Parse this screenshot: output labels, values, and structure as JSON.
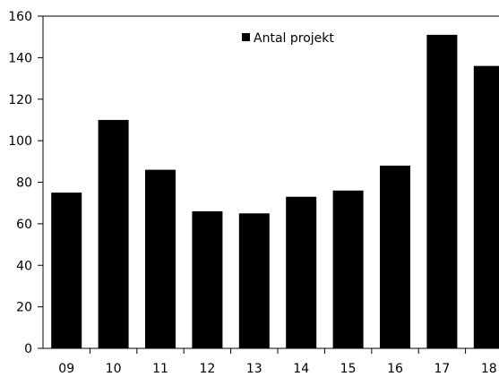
{
  "chart_data": {
    "type": "bar",
    "title": "",
    "xlabel": "",
    "ylabel": "",
    "categories": [
      "09",
      "10",
      "11",
      "12",
      "13",
      "14",
      "15",
      "16",
      "17",
      "18"
    ],
    "series": [
      {
        "name": "Antal projekt",
        "values": [
          75,
          110,
          86,
          66,
          65,
          73,
          76,
          88,
          151,
          136
        ]
      }
    ],
    "ylim": [
      0,
      160
    ],
    "yticks": [
      0,
      20,
      40,
      60,
      80,
      100,
      120,
      140,
      160
    ],
    "grid": false,
    "legend": {
      "position": "top-center",
      "entries": [
        "Antal projekt"
      ]
    },
    "colors": {
      "bar": "#000000",
      "axis": "#000000",
      "background": "#ffffff"
    }
  }
}
